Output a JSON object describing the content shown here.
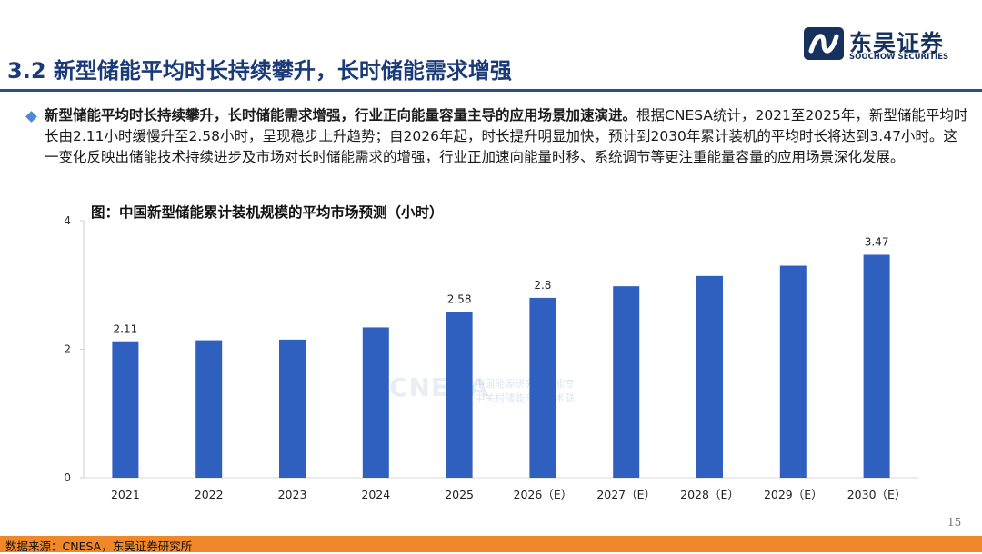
{
  "brand": {
    "name_cn": "东吴证券",
    "name_en": "SOOCHOW SECURITIES",
    "logo_icon": "soochow-logo-icon"
  },
  "page": {
    "title": "3.2 新型储能平均时长持续攀升，长时储能需求增强",
    "page_number": "15"
  },
  "bullet": {
    "bold": "新型储能平均时长持续攀升，长时储能需求增强，行业正向能量容量主导的应用场景加速演进。",
    "text": "根据CNESA统计，2021至2025年，新型储能平均时长由2.11小时缓慢升至2.58小时，呈现稳步上升趋势；自2026年起，时长提升明显加快，预计到2030年累计装机的平均时长将达到3.47小时。这一变化反映出储能技术持续进步及市场对长时储能需求的增强，行业正加速向能量时移、系统调节等更注重能量容量的应用场景深化发展。"
  },
  "chart_data": {
    "type": "bar",
    "title": "图：中国新型储能累计装机规模的平均市场预测（小时）",
    "categories": [
      "2021",
      "2022",
      "2023",
      "2024",
      "2025",
      "2026（E）",
      "2027（E）",
      "2028（E）",
      "2029（E）",
      "2030（E）"
    ],
    "values": [
      2.11,
      2.14,
      2.15,
      2.34,
      2.58,
      2.8,
      2.98,
      3.14,
      3.3,
      3.47
    ],
    "data_labels": [
      "2.11",
      "",
      "",
      "",
      "2.58",
      "2.8",
      "",
      "",
      "",
      "3.47"
    ],
    "y_ticks": [
      "0",
      "2",
      "4"
    ],
    "ylim": [
      0,
      4
    ],
    "bar_color": "#2f5fbf",
    "grid": false
  },
  "watermark": {
    "text": "CNESA",
    "cn_line1": "中国能源研究会储能专",
    "cn_line2": "中关村储能产业技术联"
  },
  "footer": {
    "source": "数据来源：CNESA，东吴证券研究所",
    "bar_color": "#f0882a"
  }
}
